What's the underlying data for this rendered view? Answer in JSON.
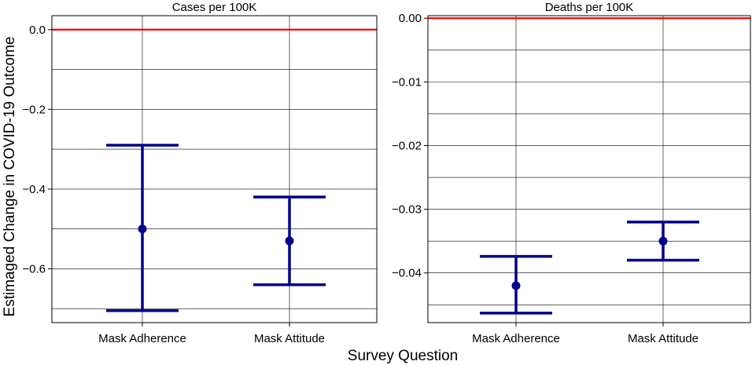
{
  "figure": {
    "shared_ylabel": "Estimaged Change in COVID-19 Outcome",
    "shared_xlabel": "Survey Question",
    "colors": {
      "reference_line": "#ff0000",
      "estimate": "#00008b",
      "grid": "#000000"
    }
  },
  "chart_data": [
    {
      "type": "scatter",
      "title": "Cases per 100K",
      "xlabel": "",
      "ylabel": "",
      "categories": [
        "Mask Adherence",
        "Mask Attitude"
      ],
      "ylim": [
        -0.735,
        0.035
      ],
      "yticks": [
        0.0,
        -0.2,
        -0.4,
        -0.6
      ],
      "ytick_labels": [
        "0.0",
        "−0.2",
        "−0.4",
        "−0.6"
      ],
      "minor_grid": [
        -0.1,
        -0.3,
        -0.5,
        -0.7
      ],
      "reference_y": 0.0,
      "grid": true,
      "series": [
        {
          "values": [
            -0.5,
            -0.53
          ],
          "lower": [
            -0.705,
            -0.64
          ],
          "upper": [
            -0.29,
            -0.42
          ]
        }
      ]
    },
    {
      "type": "scatter",
      "title": "Deaths per 100K",
      "xlabel": "",
      "ylabel": "",
      "categories": [
        "Mask Adherence",
        "Mask Attitude"
      ],
      "ylim": [
        -0.0478,
        0.0004
      ],
      "yticks": [
        0.0,
        -0.01,
        -0.02,
        -0.03,
        -0.04
      ],
      "ytick_labels": [
        "0.00",
        "−0.01",
        "−0.02",
        "−0.03",
        "−0.04"
      ],
      "minor_grid": [
        -0.005,
        -0.015,
        -0.025,
        -0.035,
        -0.045
      ],
      "reference_y": 0.0,
      "grid": true,
      "series": [
        {
          "values": [
            -0.042,
            -0.035
          ],
          "lower": [
            -0.0463,
            -0.038
          ],
          "upper": [
            -0.0374,
            -0.032
          ]
        }
      ]
    }
  ]
}
